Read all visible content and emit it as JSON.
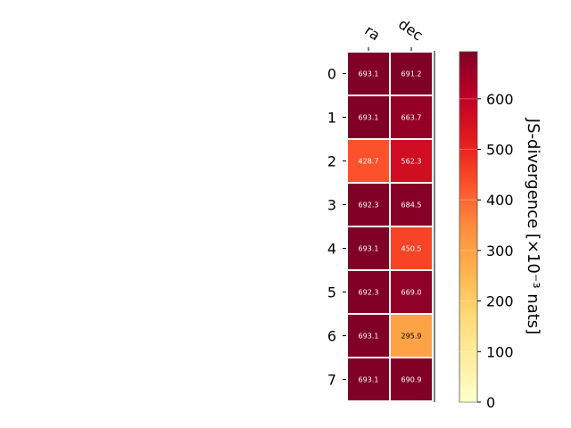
{
  "chart_data": {
    "type": "heatmap",
    "columns": [
      "ra",
      "dec"
    ],
    "rows": [
      "0",
      "1",
      "2",
      "3",
      "4",
      "5",
      "6",
      "7"
    ],
    "values": [
      [
        693.1,
        691.2
      ],
      [
        693.1,
        663.7
      ],
      [
        428.7,
        562.3
      ],
      [
        692.3,
        684.5
      ],
      [
        693.1,
        450.5
      ],
      [
        692.3,
        669.0
      ],
      [
        693.1,
        295.9
      ],
      [
        693.1,
        690.9
      ]
    ],
    "value_labels": [
      [
        "693.1",
        "691.2"
      ],
      [
        "693.1",
        "663.7"
      ],
      [
        "428.7",
        "562.3"
      ],
      [
        "692.3",
        "684.5"
      ],
      [
        "693.1",
        "450.5"
      ],
      [
        "692.3",
        "669.0"
      ],
      [
        "693.1",
        "295.9"
      ],
      [
        "693.1",
        "690.9"
      ]
    ],
    "colorbar": {
      "label": "JS-divergence [×10⁻³ nats]",
      "ticks": [
        0,
        100,
        200,
        300,
        400,
        500,
        600
      ],
      "range": [
        0,
        693.1
      ],
      "colormap": "YlOrRd"
    }
  }
}
